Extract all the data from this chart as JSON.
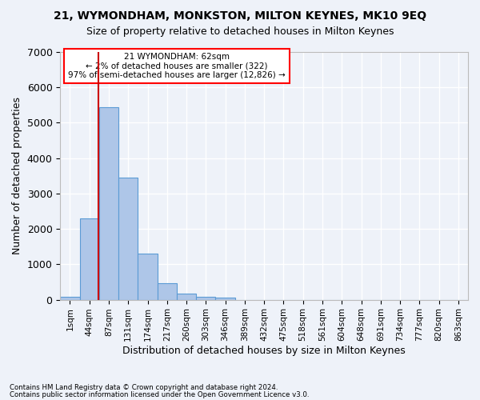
{
  "title": "21, WYMONDHAM, MONKSTON, MILTON KEYNES, MK10 9EQ",
  "subtitle": "Size of property relative to detached houses in Milton Keynes",
  "xlabel": "Distribution of detached houses by size in Milton Keynes",
  "ylabel": "Number of detached properties",
  "footnote1": "Contains HM Land Registry data © Crown copyright and database right 2024.",
  "footnote2": "Contains public sector information licensed under the Open Government Licence v3.0.",
  "annotation_line1": "21 WYMONDHAM: 62sqm",
  "annotation_line2": "← 2% of detached houses are smaller (322)",
  "annotation_line3": "97% of semi-detached houses are larger (12,826) →",
  "bar_values": [
    75,
    2300,
    5450,
    3450,
    1310,
    460,
    165,
    90,
    55,
    0,
    0,
    0,
    0,
    0,
    0,
    0,
    0,
    0,
    0,
    0,
    0
  ],
  "bin_labels": [
    "1sqm",
    "44sqm",
    "87sqm",
    "131sqm",
    "174sqm",
    "217sqm",
    "260sqm",
    "303sqm",
    "346sqm",
    "389sqm",
    "432sqm",
    "475sqm",
    "518sqm",
    "561sqm",
    "604sqm",
    "648sqm",
    "691sqm",
    "734sqm",
    "777sqm",
    "820sqm",
    "863sqm"
  ],
  "bar_color": "#aec6e8",
  "bar_edge_color": "#5b9bd5",
  "bg_color": "#eef2f9",
  "grid_color": "#ffffff",
  "marker_color": "#cc0000",
  "ylim": [
    0,
    7000
  ],
  "yticks": [
    0,
    1000,
    2000,
    3000,
    4000,
    5000,
    6000,
    7000
  ]
}
